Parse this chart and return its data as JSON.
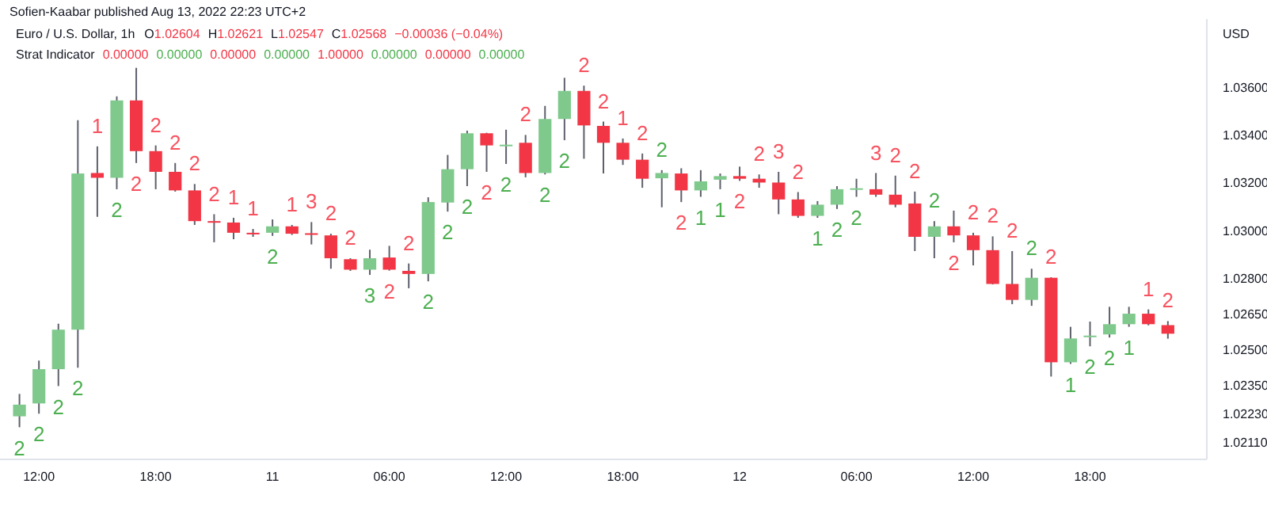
{
  "chart_data": {
    "type": "candlestick",
    "title": "Euro / U.S. Dollar, 1h",
    "subtitle": "Sofien-Kaabar published Aug 13, 2022 22:23 UTC+2",
    "ylabel": "USD",
    "x": [
      "2022-08-10T11:00",
      "2022-08-10T12:00",
      "2022-08-10T13:00",
      "2022-08-10T14:00",
      "2022-08-10T15:00",
      "2022-08-10T16:00",
      "2022-08-10T17:00",
      "2022-08-10T18:00",
      "2022-08-10T19:00",
      "2022-08-10T20:00",
      "2022-08-10T21:00",
      "2022-08-10T22:00",
      "2022-08-10T23:00",
      "2022-08-11T00:00",
      "2022-08-11T01:00",
      "2022-08-11T02:00",
      "2022-08-11T03:00",
      "2022-08-11T04:00",
      "2022-08-11T05:00",
      "2022-08-11T06:00",
      "2022-08-11T07:00",
      "2022-08-11T08:00",
      "2022-08-11T09:00",
      "2022-08-11T10:00",
      "2022-08-11T11:00",
      "2022-08-11T12:00",
      "2022-08-11T13:00",
      "2022-08-11T14:00",
      "2022-08-11T15:00",
      "2022-08-11T16:00",
      "2022-08-11T17:00",
      "2022-08-11T18:00",
      "2022-08-11T19:00",
      "2022-08-11T20:00",
      "2022-08-11T21:00",
      "2022-08-11T22:00",
      "2022-08-11T23:00",
      "2022-08-12T00:00",
      "2022-08-12T01:00",
      "2022-08-12T02:00",
      "2022-08-12T03:00",
      "2022-08-12T04:00",
      "2022-08-12T05:00",
      "2022-08-12T06:00",
      "2022-08-12T07:00",
      "2022-08-12T08:00",
      "2022-08-12T09:00",
      "2022-08-12T10:00",
      "2022-08-12T11:00",
      "2022-08-12T12:00",
      "2022-08-12T13:00",
      "2022-08-12T14:00",
      "2022-08-12T15:00",
      "2022-08-12T16:00",
      "2022-08-12T17:00",
      "2022-08-12T18:00",
      "2022-08-12T19:00",
      "2022-08-12T20:00",
      "2022-08-12T21:00",
      "2022-08-12T22:00"
    ],
    "ohlc": [
      [
        1.02221,
        1.02315,
        1.02175,
        1.0227
      ],
      [
        1.02275,
        1.02455,
        1.02232,
        1.02419
      ],
      [
        1.02419,
        1.0261,
        1.02348,
        1.02585
      ],
      [
        1.02585,
        1.03465,
        1.02425,
        1.03241
      ],
      [
        1.03243,
        1.03355,
        1.03059,
        1.03223
      ],
      [
        1.03223,
        1.03565,
        1.03175,
        1.03548
      ],
      [
        1.03548,
        1.03685,
        1.03285,
        1.03335
      ],
      [
        1.03335,
        1.03359,
        1.03175,
        1.03248
      ],
      [
        1.03248,
        1.03285,
        1.03165,
        1.0317
      ],
      [
        1.0317,
        1.03197,
        1.03025,
        1.03041
      ],
      [
        1.03041,
        1.0307,
        1.02952,
        1.03037
      ],
      [
        1.03035,
        1.03055,
        1.02965,
        1.02992
      ],
      [
        1.02992,
        1.03008,
        1.02975,
        1.0299
      ],
      [
        1.02992,
        1.03048,
        1.02979,
        1.03019
      ],
      [
        1.03019,
        1.03025,
        1.02983,
        1.02988
      ],
      [
        1.0299,
        1.03037,
        1.02943,
        1.02988
      ],
      [
        1.02981,
        1.02988,
        1.02841,
        1.02885
      ],
      [
        1.02881,
        1.02885,
        1.02832,
        1.02837
      ],
      [
        1.02837,
        1.02921,
        1.02815,
        1.02885
      ],
      [
        1.02888,
        1.02937,
        1.02833,
        1.02837
      ],
      [
        1.02832,
        1.02863,
        1.02759,
        1.02819
      ],
      [
        1.02819,
        1.03141,
        1.02788,
        1.03121
      ],
      [
        1.03119,
        1.03319,
        1.03081,
        1.03259
      ],
      [
        1.03259,
        1.03421,
        1.03188,
        1.0341
      ],
      [
        1.0341,
        1.03412,
        1.03248,
        1.03359
      ],
      [
        1.03359,
        1.03425,
        1.03281,
        1.03362
      ],
      [
        1.0337,
        1.03403,
        1.03225,
        1.03243
      ],
      [
        1.03243,
        1.03525,
        1.03237,
        1.0347
      ],
      [
        1.0347,
        1.03643,
        1.03381,
        1.03588
      ],
      [
        1.03588,
        1.0361,
        1.03303,
        1.03443
      ],
      [
        1.03441,
        1.03459,
        1.03241,
        1.0337
      ],
      [
        1.0337,
        1.03388,
        1.03277,
        1.03299
      ],
      [
        1.03299,
        1.03325,
        1.03181,
        1.03219
      ],
      [
        1.03221,
        1.03255,
        1.03099,
        1.03243
      ],
      [
        1.03241,
        1.03263,
        1.03121,
        1.0317
      ],
      [
        1.0317,
        1.03255,
        1.03143,
        1.03208
      ],
      [
        1.03215,
        1.03241,
        1.03175,
        1.0323
      ],
      [
        1.0323,
        1.0327,
        1.0321,
        1.03219
      ],
      [
        1.03219,
        1.03237,
        1.03181,
        1.03203
      ],
      [
        1.03203,
        1.03248,
        1.0307,
        1.03132
      ],
      [
        1.03132,
        1.03163,
        1.03055,
        1.03063
      ],
      [
        1.03063,
        1.03125,
        1.03055,
        1.0311
      ],
      [
        1.0311,
        1.03188,
        1.03092,
        1.03175
      ],
      [
        1.03177,
        1.03219,
        1.03143,
        1.03179
      ],
      [
        1.03175,
        1.03243,
        1.03143,
        1.03152
      ],
      [
        1.03152,
        1.03232,
        1.03099,
        1.0311
      ],
      [
        1.03115,
        1.03165,
        1.02915,
        1.02975
      ],
      [
        1.02975,
        1.03041,
        1.02885,
        1.03019
      ],
      [
        1.03019,
        1.03085,
        1.02952,
        1.02981
      ],
      [
        1.02981,
        1.02992,
        1.02855,
        1.02919
      ],
      [
        1.02919,
        1.02977,
        1.02775,
        1.02777
      ],
      [
        1.02777,
        1.02915,
        1.02692,
        1.0271
      ],
      [
        1.0271,
        1.02841,
        1.02685,
        1.02803
      ],
      [
        1.02803,
        1.02805,
        1.02388,
        1.02448
      ],
      [
        1.02448,
        1.02597,
        1.02441,
        1.02548
      ],
      [
        1.02555,
        1.02619,
        1.02515,
        1.0256
      ],
      [
        1.02565,
        1.02681,
        1.02552,
        1.02608
      ],
      [
        1.02608,
        1.02681,
        1.02597,
        1.02652
      ],
      [
        1.02652,
        1.0267,
        1.02603,
        1.02608
      ],
      [
        1.02604,
        1.02621,
        1.02547,
        1.02568
      ]
    ],
    "colors": [
      "#7fc98c",
      "#7fc98c",
      "#7fc98c",
      "#7fc98c",
      "#f23645",
      "#7fc98c",
      "#f23645",
      "#f23645",
      "#f23645",
      "#f23645",
      "#f23645",
      "#f23645",
      "#f23645",
      "#7fc98c",
      "#f23645",
      "#f23645",
      "#f23645",
      "#f23645",
      "#7fc98c",
      "#f23645",
      "#f23645",
      "#7fc98c",
      "#7fc98c",
      "#7fc98c",
      "#f23645",
      "#7fc98c",
      "#f23645",
      "#7fc98c",
      "#7fc98c",
      "#f23645",
      "#f23645",
      "#f23645",
      "#f23645",
      "#7fc98c",
      "#f23645",
      "#7fc98c",
      "#7fc98c",
      "#f23645",
      "#f23645",
      "#f23645",
      "#f23645",
      "#7fc98c",
      "#7fc98c",
      "#7fc98c",
      "#f23645",
      "#f23645",
      "#f23645",
      "#7fc98c",
      "#f23645",
      "#f23645",
      "#f23645",
      "#f23645",
      "#7fc98c",
      "#f23645",
      "#7fc98c",
      "#7fc98c",
      "#7fc98c",
      "#7fc98c",
      "#f23645",
      "#f23645"
    ],
    "xlim": [
      "2022-08-10T10:00",
      "2022-08-13T00:00"
    ],
    "xticks": [
      {
        "value": "2022-08-10T12:00",
        "label": "12:00"
      },
      {
        "value": "2022-08-10T18:00",
        "label": "18:00"
      },
      {
        "value": "2022-08-11T00:00",
        "label": "11"
      },
      {
        "value": "2022-08-11T06:00",
        "label": "06:00"
      },
      {
        "value": "2022-08-11T12:00",
        "label": "12:00"
      },
      {
        "value": "2022-08-11T18:00",
        "label": "18:00"
      },
      {
        "value": "2022-08-12T00:00",
        "label": "12"
      },
      {
        "value": "2022-08-12T06:00",
        "label": "06:00"
      },
      {
        "value": "2022-08-12T12:00",
        "label": "12:00"
      },
      {
        "value": "2022-08-12T18:00",
        "label": "18:00"
      }
    ],
    "ylim": [
      1.0204,
      1.0389
    ],
    "yticks": [
      {
        "value": 1.0211,
        "label": "1.02110"
      },
      {
        "value": 1.0223,
        "label": "1.02230"
      },
      {
        "value": 1.0235,
        "label": "1.02350"
      },
      {
        "value": 1.025,
        "label": "1.02500"
      },
      {
        "value": 1.0265,
        "label": "1.02650"
      },
      {
        "value": 1.028,
        "label": "1.02800"
      },
      {
        "value": 1.03,
        "label": "1.03000"
      },
      {
        "value": 1.032,
        "label": "1.03200"
      },
      {
        "value": 1.034,
        "label": "1.03400"
      },
      {
        "value": 1.036,
        "label": "1.03600"
      }
    ],
    "grid": false,
    "annotations": [
      "O1.02604",
      "H1.02621",
      "L1.02547",
      "C1.02568",
      "−0.00036 (−0.04%)",
      "Strat Indicator",
      "0.00000",
      "0.00000",
      "0.00000",
      "0.00000",
      "1.00000",
      "0.00000",
      "0.00000",
      "0.00000",
      {
        "text": "2",
        "x": "2022-08-10T11:00",
        "y": 1.02175
      },
      {
        "text": "2",
        "x": "2022-08-10T12:00",
        "y": 1.02232
      },
      {
        "text": "2",
        "x": "2022-08-10T13:00",
        "y": 1.02348
      },
      {
        "text": "2",
        "x": "2022-08-10T14:00",
        "y": 1.02425
      },
      {
        "text": "1",
        "x": "2022-08-10T15:00",
        "y": 1.03355
      },
      {
        "text": "2",
        "x": "2022-08-10T16:00",
        "y": 1.03175
      },
      {
        "text": "2",
        "x": "2022-08-10T17:00",
        "y": 1.03285
      },
      {
        "text": "2",
        "x": "2022-08-10T18:00",
        "y": 1.03359
      },
      {
        "text": "2",
        "x": "2022-08-10T19:00",
        "y": 1.03285
      },
      {
        "text": "2",
        "x": "2022-08-10T20:00",
        "y": 1.03197
      },
      {
        "text": "2",
        "x": "2022-08-10T21:00",
        "y": 1.0307
      },
      {
        "text": "1",
        "x": "2022-08-10T22:00",
        "y": 1.03055
      },
      {
        "text": "1",
        "x": "2022-08-10T23:00",
        "y": 1.03008
      },
      {
        "text": "2",
        "x": "2022-08-11T00:00",
        "y": 1.02979
      },
      {
        "text": "1",
        "x": "2022-08-11T01:00",
        "y": 1.03025
      },
      {
        "text": "3",
        "x": "2022-08-11T02:00",
        "y": 1.03037
      },
      {
        "text": "2",
        "x": "2022-08-11T03:00",
        "y": 1.02988
      },
      {
        "text": "2",
        "x": "2022-08-11T04:00",
        "y": 1.02885
      },
      {
        "text": "3",
        "x": "2022-08-11T05:00",
        "y": 1.02815
      },
      {
        "text": "2",
        "x": "2022-08-11T06:00",
        "y": 1.02833
      },
      {
        "text": "2",
        "x": "2022-08-11T07:00",
        "y": 1.02863
      },
      {
        "text": "2",
        "x": "2022-08-11T08:00",
        "y": 1.02788
      },
      {
        "text": "2",
        "x": "2022-08-11T09:00",
        "y": 1.03081
      },
      {
        "text": "2",
        "x": "2022-08-11T10:00",
        "y": 1.03188
      },
      {
        "text": "2",
        "x": "2022-08-11T11:00",
        "y": 1.03248
      },
      {
        "text": "2",
        "x": "2022-08-11T12:00",
        "y": 1.03281
      },
      {
        "text": "2",
        "x": "2022-08-11T13:00",
        "y": 1.03403
      },
      {
        "text": "2",
        "x": "2022-08-11T14:00",
        "y": 1.03237
      },
      {
        "text": "2",
        "x": "2022-08-11T15:00",
        "y": 1.03381
      },
      {
        "text": "2",
        "x": "2022-08-11T16:00",
        "y": 1.0361
      },
      {
        "text": "2",
        "x": "2022-08-11T17:00",
        "y": 1.03459
      },
      {
        "text": "1",
        "x": "2022-08-11T18:00",
        "y": 1.03388
      },
      {
        "text": "2",
        "x": "2022-08-11T19:00",
        "y": 1.03325
      },
      {
        "text": "2",
        "x": "2022-08-11T20:00",
        "y": 1.03255
      },
      {
        "text": "2",
        "x": "2022-08-11T21:00",
        "y": 1.03121
      },
      {
        "text": "1",
        "x": "2022-08-11T22:00",
        "y": 1.03143
      },
      {
        "text": "1",
        "x": "2022-08-11T23:00",
        "y": 1.03175
      },
      {
        "text": "2",
        "x": "2022-08-12T00:00",
        "y": 1.0321
      },
      {
        "text": "2",
        "x": "2022-08-12T01:00",
        "y": 1.03237
      },
      {
        "text": "3",
        "x": "2022-08-12T02:00",
        "y": 1.03248
      },
      {
        "text": "2",
        "x": "2022-08-12T03:00",
        "y": 1.03163
      },
      {
        "text": "1",
        "x": "2022-08-12T04:00",
        "y": 1.03055
      },
      {
        "text": "2",
        "x": "2022-08-12T05:00",
        "y": 1.03092
      },
      {
        "text": "2",
        "x": "2022-08-12T06:00",
        "y": 1.03143
      },
      {
        "text": "3",
        "x": "2022-08-12T07:00",
        "y": 1.03243
      },
      {
        "text": "2",
        "x": "2022-08-12T08:00",
        "y": 1.03232
      },
      {
        "text": "2",
        "x": "2022-08-12T09:00",
        "y": 1.03165
      },
      {
        "text": "2",
        "x": "2022-08-12T10:00",
        "y": 1.03041
      },
      {
        "text": "2",
        "x": "2022-08-12T11:00",
        "y": 1.02952
      },
      {
        "text": "2",
        "x": "2022-08-12T12:00",
        "y": 1.02992
      },
      {
        "text": "2",
        "x": "2022-08-12T13:00",
        "y": 1.02977
      },
      {
        "text": "2",
        "x": "2022-08-12T14:00",
        "y": 1.02915
      },
      {
        "text": "2",
        "x": "2022-08-12T15:00",
        "y": 1.02841
      },
      {
        "text": "2",
        "x": "2022-08-12T16:00",
        "y": 1.02805
      },
      {
        "text": "1",
        "x": "2022-08-12T17:00",
        "y": 1.02441
      },
      {
        "text": "2",
        "x": "2022-08-12T18:00",
        "y": 1.02515
      },
      {
        "text": "2",
        "x": "2022-08-12T19:00",
        "y": 1.02552
      },
      {
        "text": "1",
        "x": "2022-08-12T20:00",
        "y": 1.02597
      },
      {
        "text": "1",
        "x": "2022-08-12T21:00",
        "y": 1.0267
      },
      {
        "text": "2",
        "x": "2022-08-12T22:00",
        "y": 1.02621
      }
    ]
  }
}
